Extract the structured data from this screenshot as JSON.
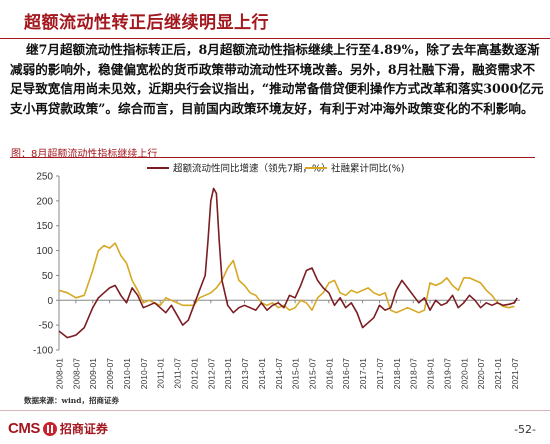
{
  "slide": {
    "title": "超额流动性转正后继续明显上行",
    "paragraph": "继7月超额流动性指标转正后，8月超额流动性指标继续上行至4.89%，除了去年高基数逐渐减弱的影响外，稳健偏宽松的货币政策带动流动性环境改善。另外，8月社融下滑，融资需求不足导致宽信用尚未见效，近期央行会议指出，“推动常备借贷便利操作方式改革和落实3000亿元支小再贷款政策”。综合而言，目前国内政策环境友好，有利于对冲海外政策变化的不利影响。",
    "chart_caption": "图：8月超额流动性指标继续上行",
    "source": "数据来源：wind，招商证券",
    "logo_text": "CMS",
    "logo_cn": "招商证券",
    "page_number": "-52-"
  },
  "chart_data": {
    "type": "line",
    "title": "",
    "xlabel": "",
    "ylabel": "",
    "ylim": [
      -100,
      250
    ],
    "yticks": [
      "250",
      "200",
      "150",
      "100",
      "50",
      "0",
      "-50",
      "-100"
    ],
    "xtick_labels": [
      "2008-01",
      "2008-07",
      "2009-01",
      "2009-07",
      "2010-01",
      "2010-07",
      "2011-01",
      "2011-07",
      "2012-01",
      "2012-07",
      "2013-01",
      "2013-07",
      "2014-01",
      "2014-07",
      "2015-01",
      "2015-07",
      "2016-01",
      "2016-07",
      "2017-01",
      "2017-07",
      "2018-01",
      "2018-07",
      "2019-01",
      "2019-07",
      "2020-01",
      "2020-07",
      "2021-01",
      "2021-07"
    ],
    "legend_position": "top",
    "grid": false,
    "colors": {
      "excess": "#7b1d23",
      "social": "#d7a823",
      "accent": "#a3171f"
    },
    "series": [
      {
        "name": "超额流动性同比增速（领先7期，%）",
        "key": "excess",
        "points": [
          [
            "2008-01",
            -62
          ],
          [
            "2008-04",
            -75
          ],
          [
            "2008-07",
            -70
          ],
          [
            "2008-10",
            -55
          ],
          [
            "2009-01",
            -15
          ],
          [
            "2009-03",
            5
          ],
          [
            "2009-05",
            15
          ],
          [
            "2009-07",
            25
          ],
          [
            "2009-09",
            30
          ],
          [
            "2009-11",
            10
          ],
          [
            "2010-01",
            -5
          ],
          [
            "2010-03",
            25
          ],
          [
            "2010-05",
            10
          ],
          [
            "2010-07",
            -15
          ],
          [
            "2010-09",
            -10
          ],
          [
            "2010-11",
            -5
          ],
          [
            "2011-01",
            -15
          ],
          [
            "2011-03",
            -25
          ],
          [
            "2011-05",
            -10
          ],
          [
            "2011-07",
            -30
          ],
          [
            "2011-09",
            -50
          ],
          [
            "2011-11",
            -40
          ],
          [
            "2012-01",
            -10
          ],
          [
            "2012-03",
            20
          ],
          [
            "2012-05",
            50
          ],
          [
            "2012-06",
            120
          ],
          [
            "2012-07",
            200
          ],
          [
            "2012-08",
            225
          ],
          [
            "2012-09",
            215
          ],
          [
            "2012-10",
            120
          ],
          [
            "2012-11",
            40
          ],
          [
            "2013-01",
            -10
          ],
          [
            "2013-03",
            -25
          ],
          [
            "2013-05",
            -15
          ],
          [
            "2013-07",
            -10
          ],
          [
            "2013-09",
            -15
          ],
          [
            "2013-11",
            -20
          ],
          [
            "2014-01",
            -5
          ],
          [
            "2014-03",
            -20
          ],
          [
            "2014-05",
            -10
          ],
          [
            "2014-07",
            -5
          ],
          [
            "2014-09",
            -15
          ],
          [
            "2014-11",
            10
          ],
          [
            "2015-01",
            5
          ],
          [
            "2015-03",
            30
          ],
          [
            "2015-05",
            60
          ],
          [
            "2015-07",
            65
          ],
          [
            "2015-09",
            40
          ],
          [
            "2015-11",
            25
          ],
          [
            "2016-01",
            15
          ],
          [
            "2016-03",
            -10
          ],
          [
            "2016-05",
            5
          ],
          [
            "2016-07",
            -15
          ],
          [
            "2016-09",
            -5
          ],
          [
            "2016-11",
            -25
          ],
          [
            "2017-01",
            -55
          ],
          [
            "2017-03",
            -45
          ],
          [
            "2017-05",
            -35
          ],
          [
            "2017-07",
            -10
          ],
          [
            "2017-09",
            -20
          ],
          [
            "2017-11",
            -15
          ],
          [
            "2018-01",
            20
          ],
          [
            "2018-03",
            40
          ],
          [
            "2018-05",
            25
          ],
          [
            "2018-07",
            10
          ],
          [
            "2018-09",
            -5
          ],
          [
            "2018-11",
            5
          ],
          [
            "2019-01",
            -20
          ],
          [
            "2019-03",
            0
          ],
          [
            "2019-05",
            -10
          ],
          [
            "2019-07",
            -5
          ],
          [
            "2019-09",
            10
          ],
          [
            "2019-11",
            -15
          ],
          [
            "2020-01",
            -5
          ],
          [
            "2020-03",
            10
          ],
          [
            "2020-05",
            0
          ],
          [
            "2020-07",
            -15
          ],
          [
            "2020-09",
            -5
          ],
          [
            "2020-11",
            -10
          ],
          [
            "2021-01",
            -5
          ],
          [
            "2021-03",
            -10
          ],
          [
            "2021-05",
            -8
          ],
          [
            "2021-07",
            -5
          ],
          [
            "2021-08",
            4.89
          ]
        ]
      },
      {
        "name": "社融累计同比(%)",
        "key": "social",
        "points": [
          [
            "2008-01",
            20
          ],
          [
            "2008-04",
            15
          ],
          [
            "2008-07",
            5
          ],
          [
            "2008-10",
            10
          ],
          [
            "2009-01",
            60
          ],
          [
            "2009-03",
            100
          ],
          [
            "2009-05",
            110
          ],
          [
            "2009-07",
            105
          ],
          [
            "2009-09",
            115
          ],
          [
            "2009-11",
            90
          ],
          [
            "2010-01",
            75
          ],
          [
            "2010-03",
            40
          ],
          [
            "2010-05",
            20
          ],
          [
            "2010-07",
            -5
          ],
          [
            "2010-09",
            0
          ],
          [
            "2010-11",
            -5
          ],
          [
            "2011-01",
            -10
          ],
          [
            "2011-03",
            5
          ],
          [
            "2011-05",
            0
          ],
          [
            "2011-07",
            -5
          ],
          [
            "2011-09",
            -10
          ],
          [
            "2011-11",
            -10
          ],
          [
            "2012-01",
            -10
          ],
          [
            "2012-03",
            5
          ],
          [
            "2012-05",
            10
          ],
          [
            "2012-07",
            15
          ],
          [
            "2012-09",
            25
          ],
          [
            "2012-11",
            40
          ],
          [
            "2013-01",
            65
          ],
          [
            "2013-03",
            80
          ],
          [
            "2013-05",
            40
          ],
          [
            "2013-07",
            30
          ],
          [
            "2013-09",
            15
          ],
          [
            "2013-11",
            10
          ],
          [
            "2014-01",
            -5
          ],
          [
            "2014-03",
            -10
          ],
          [
            "2014-05",
            -5
          ],
          [
            "2014-07",
            -15
          ],
          [
            "2014-09",
            -10
          ],
          [
            "2014-11",
            -20
          ],
          [
            "2015-01",
            -15
          ],
          [
            "2015-03",
            0
          ],
          [
            "2015-05",
            -5
          ],
          [
            "2015-07",
            -20
          ],
          [
            "2015-09",
            5
          ],
          [
            "2015-11",
            15
          ],
          [
            "2016-01",
            35
          ],
          [
            "2016-03",
            40
          ],
          [
            "2016-05",
            15
          ],
          [
            "2016-07",
            10
          ],
          [
            "2016-09",
            20
          ],
          [
            "2016-11",
            15
          ],
          [
            "2017-01",
            20
          ],
          [
            "2017-03",
            25
          ],
          [
            "2017-05",
            15
          ],
          [
            "2017-07",
            10
          ],
          [
            "2017-09",
            15
          ],
          [
            "2017-11",
            -20
          ],
          [
            "2018-01",
            -25
          ],
          [
            "2018-03",
            -20
          ],
          [
            "2018-05",
            -15
          ],
          [
            "2018-07",
            -20
          ],
          [
            "2018-09",
            -25
          ],
          [
            "2018-11",
            -20
          ],
          [
            "2019-01",
            35
          ],
          [
            "2019-03",
            30
          ],
          [
            "2019-05",
            35
          ],
          [
            "2019-07",
            45
          ],
          [
            "2019-09",
            30
          ],
          [
            "2019-11",
            20
          ],
          [
            "2020-01",
            45
          ],
          [
            "2020-03",
            45
          ],
          [
            "2020-05",
            40
          ],
          [
            "2020-07",
            35
          ],
          [
            "2020-09",
            20
          ],
          [
            "2020-11",
            10
          ],
          [
            "2021-01",
            -5
          ],
          [
            "2021-03",
            -12
          ],
          [
            "2021-05",
            -15
          ],
          [
            "2021-07",
            -12
          ]
        ]
      }
    ]
  }
}
